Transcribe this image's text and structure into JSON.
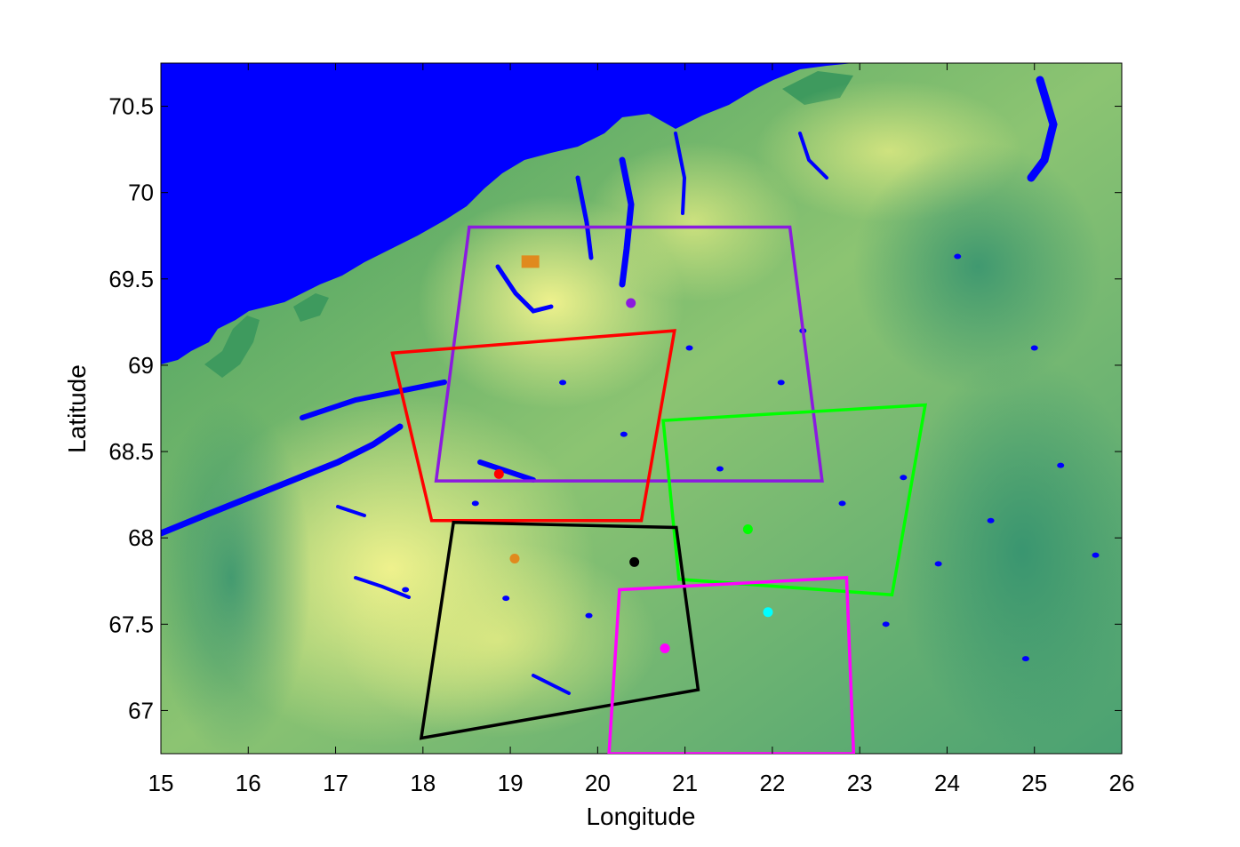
{
  "chart_data": {
    "type": "map",
    "xlabel": "Longitude",
    "ylabel": "Latitude",
    "xlim": [
      15,
      26
    ],
    "ylim": [
      66.75,
      70.75
    ],
    "xticks": [
      15,
      16,
      17,
      18,
      19,
      20,
      21,
      22,
      23,
      24,
      25,
      26
    ],
    "xtick_labels": [
      "15",
      "16",
      "17",
      "18",
      "19",
      "20",
      "21",
      "22",
      "23",
      "24",
      "25",
      "26"
    ],
    "yticks": [
      67,
      67.5,
      68,
      68.5,
      69,
      69.5,
      70,
      70.5
    ],
    "ytick_labels": [
      "67",
      "67.5",
      "68",
      "68.5",
      "69",
      "69.5",
      "70",
      "70.5"
    ],
    "background": "elevation map: ocean in blue, terrain shaded from green to yellow",
    "colors": {
      "ocean": "#0000ff",
      "lowland": "#2e9a6e",
      "midland": "#7fbf72",
      "highland": "#f2f28c"
    },
    "regions": [
      {
        "color": "#8b1adf",
        "points": [
          [
            18.53,
            69.8
          ],
          [
            22.2,
            69.8
          ],
          [
            22.57,
            68.33
          ],
          [
            18.15,
            68.33
          ]
        ],
        "site": [
          20.38,
          69.36
        ]
      },
      {
        "color": "#ff0000",
        "points": [
          [
            17.65,
            69.07
          ],
          [
            20.88,
            69.2
          ],
          [
            20.5,
            68.1
          ],
          [
            18.1,
            68.1
          ]
        ],
        "site": [
          18.87,
          68.37
        ]
      },
      {
        "color": "#00ff00",
        "points": [
          [
            20.75,
            68.68
          ],
          [
            23.75,
            68.77
          ],
          [
            23.37,
            67.67
          ],
          [
            20.93,
            67.76
          ]
        ],
        "site": [
          21.72,
          68.05
        ]
      },
      {
        "color": "#000000",
        "points": [
          [
            18.35,
            68.09
          ],
          [
            20.9,
            68.06
          ],
          [
            21.15,
            67.12
          ],
          [
            17.98,
            66.84
          ]
        ],
        "site": [
          20.42,
          67.86
        ]
      },
      {
        "color": "#ff00ff",
        "points": [
          [
            20.25,
            67.7
          ],
          [
            22.85,
            67.77
          ],
          [
            22.93,
            66.75
          ],
          [
            20.13,
            66.75
          ]
        ],
        "site": [
          20.77,
          67.36
        ]
      }
    ],
    "extra_sites": [
      {
        "color": "#e08a1e",
        "lon": 19.05,
        "lat": 67.88,
        "marker": "circle"
      },
      {
        "color": "#00ffff",
        "lon": 21.95,
        "lat": 67.57,
        "marker": "circle"
      },
      {
        "color": "#e08a1e",
        "lon": 19.23,
        "lat": 69.6,
        "marker": "square"
      }
    ],
    "lakes": [
      [
        24.12,
        69.63
      ],
      [
        25.3,
        68.42
      ],
      [
        21.05,
        69.1
      ],
      [
        22.1,
        68.9
      ],
      [
        23.5,
        68.35
      ],
      [
        24.5,
        68.1
      ],
      [
        25.7,
        67.9
      ],
      [
        23.3,
        67.5
      ],
      [
        24.9,
        67.3
      ],
      [
        22.8,
        68.2
      ],
      [
        19.6,
        68.9
      ],
      [
        20.3,
        68.6
      ],
      [
        18.6,
        68.2
      ],
      [
        17.8,
        67.7
      ],
      [
        19.9,
        67.55
      ],
      [
        21.4,
        68.4
      ],
      [
        22.35,
        69.2
      ],
      [
        25.0,
        69.1
      ],
      [
        23.9,
        67.85
      ],
      [
        18.95,
        67.65
      ]
    ],
    "grid": false
  }
}
